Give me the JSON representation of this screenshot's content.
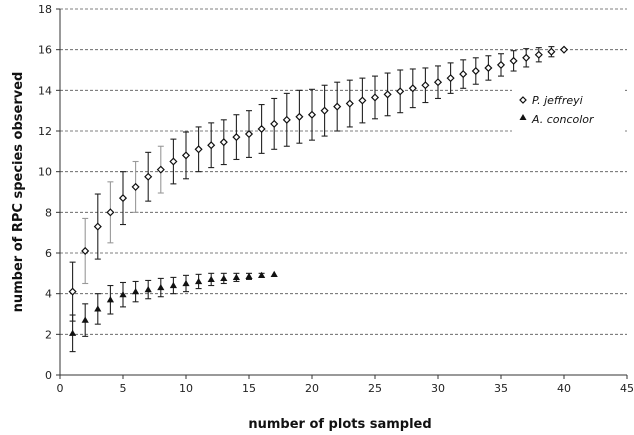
{
  "chart_data": {
    "type": "scatter",
    "xlabel": "number of plots sampled",
    "ylabel": "number of RPC species observed",
    "xlim": [
      0,
      45
    ],
    "ylim": [
      0,
      18
    ],
    "xticks": [
      0,
      5,
      10,
      15,
      20,
      25,
      30,
      35,
      40,
      45
    ],
    "yticks": [
      0,
      2,
      4,
      6,
      8,
      10,
      12,
      14,
      16,
      18
    ],
    "grid": "horizontal dashed",
    "legend": "right",
    "series": [
      {
        "name": "P. jeffreyi",
        "marker": "diamond",
        "x": [
          1,
          2,
          3,
          4,
          5,
          6,
          7,
          8,
          9,
          10,
          11,
          12,
          13,
          14,
          15,
          16,
          17,
          18,
          19,
          20,
          21,
          22,
          23,
          24,
          25,
          26,
          27,
          28,
          29,
          30,
          31,
          32,
          33,
          34,
          35,
          36,
          37,
          38,
          39,
          40
        ],
        "y": [
          4.1,
          6.1,
          7.3,
          8.0,
          8.7,
          9.25,
          9.75,
          10.1,
          10.5,
          10.8,
          11.1,
          11.3,
          11.45,
          11.7,
          11.85,
          12.1,
          12.35,
          12.55,
          12.7,
          12.8,
          13.0,
          13.2,
          13.35,
          13.5,
          13.65,
          13.8,
          13.95,
          14.1,
          14.25,
          14.4,
          14.6,
          14.8,
          14.95,
          15.1,
          15.25,
          15.45,
          15.6,
          15.75,
          15.9,
          16.0
        ],
        "err": [
          1.45,
          1.6,
          1.6,
          1.5,
          1.3,
          1.25,
          1.2,
          1.15,
          1.1,
          1.15,
          1.1,
          1.1,
          1.1,
          1.1,
          1.15,
          1.2,
          1.25,
          1.3,
          1.3,
          1.25,
          1.25,
          1.2,
          1.15,
          1.1,
          1.05,
          1.05,
          1.05,
          0.95,
          0.85,
          0.8,
          0.75,
          0.7,
          0.65,
          0.6,
          0.55,
          0.5,
          0.45,
          0.35,
          0.25,
          0.0
        ]
      },
      {
        "name": "A. concolor",
        "marker": "triangle",
        "x": [
          1,
          2,
          3,
          4,
          5,
          6,
          7,
          8,
          9,
          10,
          11,
          12,
          13,
          14,
          15,
          16,
          17
        ],
        "y": [
          2.05,
          2.7,
          3.25,
          3.7,
          3.95,
          4.1,
          4.2,
          4.3,
          4.4,
          4.5,
          4.6,
          4.7,
          4.75,
          4.8,
          4.85,
          4.9,
          4.95
        ],
        "err": [
          0.9,
          0.8,
          0.75,
          0.7,
          0.6,
          0.5,
          0.45,
          0.45,
          0.4,
          0.4,
          0.35,
          0.3,
          0.25,
          0.2,
          0.15,
          0.1,
          0.0
        ]
      }
    ]
  }
}
